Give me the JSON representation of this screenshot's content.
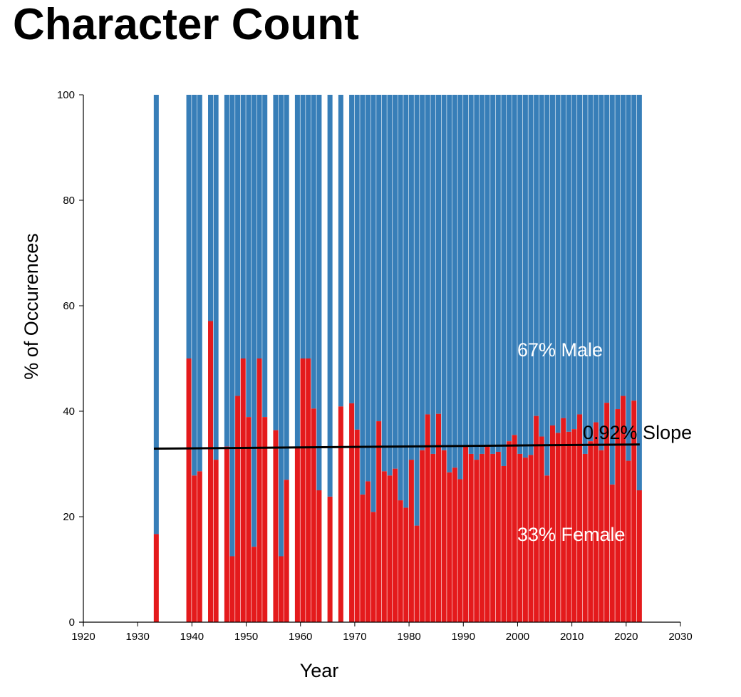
{
  "title": "Character Count",
  "chart_data": {
    "type": "bar",
    "stacked": true,
    "xlabel": "Year",
    "ylabel": "% of Occurences",
    "xlim": [
      1920,
      2030
    ],
    "ylim": [
      0,
      100
    ],
    "x_ticks": [
      1920,
      1930,
      1940,
      1950,
      1960,
      1970,
      1980,
      1990,
      2000,
      2010,
      2020,
      2030
    ],
    "y_ticks": [
      0,
      20,
      40,
      60,
      80,
      100
    ],
    "colors": {
      "female": "#e41a1c",
      "male": "#377eb8",
      "trend": "#000000",
      "annotation": "#ffffff"
    },
    "years": [
      1933,
      1939,
      1940,
      1941,
      1943,
      1944,
      1946,
      1947,
      1948,
      1949,
      1950,
      1951,
      1952,
      1953,
      1955,
      1956,
      1957,
      1959,
      1960,
      1961,
      1962,
      1963,
      1965,
      1967,
      1969,
      1970,
      1971,
      1972,
      1973,
      1974,
      1975,
      1976,
      1977,
      1978,
      1979,
      1980,
      1981,
      1982,
      1983,
      1984,
      1985,
      1986,
      1987,
      1988,
      1989,
      1990,
      1991,
      1992,
      1993,
      1994,
      1995,
      1996,
      1997,
      1998,
      1999,
      2000,
      2001,
      2002,
      2003,
      2004,
      2005,
      2006,
      2007,
      2008,
      2009,
      2010,
      2011,
      2012,
      2013,
      2014,
      2015,
      2016,
      2017,
      2018,
      2019,
      2020,
      2021,
      2022
    ],
    "series": [
      {
        "name": "Female",
        "values": [
          16.7,
          50,
          27.8,
          28.6,
          57.1,
          30.8,
          33.3,
          12.5,
          42.9,
          50,
          38.9,
          14.3,
          50,
          38.9,
          36.4,
          12.5,
          27,
          33.3,
          50,
          50,
          40.5,
          25,
          23.8,
          40.9,
          41.5,
          36.5,
          24.2,
          26.7,
          20.9,
          38.1,
          28.6,
          27.8,
          29.1,
          23.1,
          21.7,
          30.8,
          18.3,
          32.6,
          39.4,
          31.9,
          39.5,
          32.6,
          28.4,
          29.3,
          27.1,
          33.3,
          31.9,
          30.8,
          31.9,
          33.3,
          31.9,
          32.3,
          29.6,
          34.3,
          35.5,
          31.9,
          31.2,
          31.7,
          39.1,
          35.2,
          27.8,
          37.3,
          35.9,
          38.7,
          36.1,
          36.6,
          39.4,
          31.9,
          34.3,
          37.9,
          32.6,
          41.6,
          26.1,
          40.4,
          42.9,
          30.6,
          42,
          25
        ],
        "color": "#e41a1c"
      },
      {
        "name": "Male",
        "values": [
          83.3,
          50,
          72.2,
          71.4,
          42.9,
          69.2,
          66.7,
          87.5,
          57.1,
          50,
          61.1,
          85.7,
          50,
          61.1,
          63.6,
          87.5,
          73,
          66.7,
          50,
          50,
          59.5,
          75,
          76.2,
          59.1,
          58.5,
          63.5,
          75.8,
          73.3,
          79.1,
          61.9,
          71.4,
          72.2,
          70.9,
          76.9,
          78.3,
          69.2,
          81.7,
          67.4,
          60.6,
          68.1,
          60.5,
          67.4,
          71.6,
          70.7,
          72.9,
          66.7,
          68.1,
          69.2,
          68.1,
          66.7,
          68.1,
          67.7,
          70.4,
          65.7,
          64.5,
          68.1,
          68.8,
          68.3,
          60.9,
          64.8,
          72.2,
          62.7,
          64.1,
          61.3,
          63.9,
          63.4,
          60.6,
          68.1,
          65.7,
          62.1,
          67.4,
          58.4,
          73.9,
          59.6,
          57.1,
          69.4,
          58,
          75
        ],
        "color": "#377eb8"
      }
    ],
    "trendline": {
      "x": [
        1933,
        2022
      ],
      "y": [
        32.9,
        33.7
      ]
    },
    "annotations": {
      "male": "67% Male",
      "female": "33% Female",
      "slope": "0.92% Slope"
    }
  }
}
